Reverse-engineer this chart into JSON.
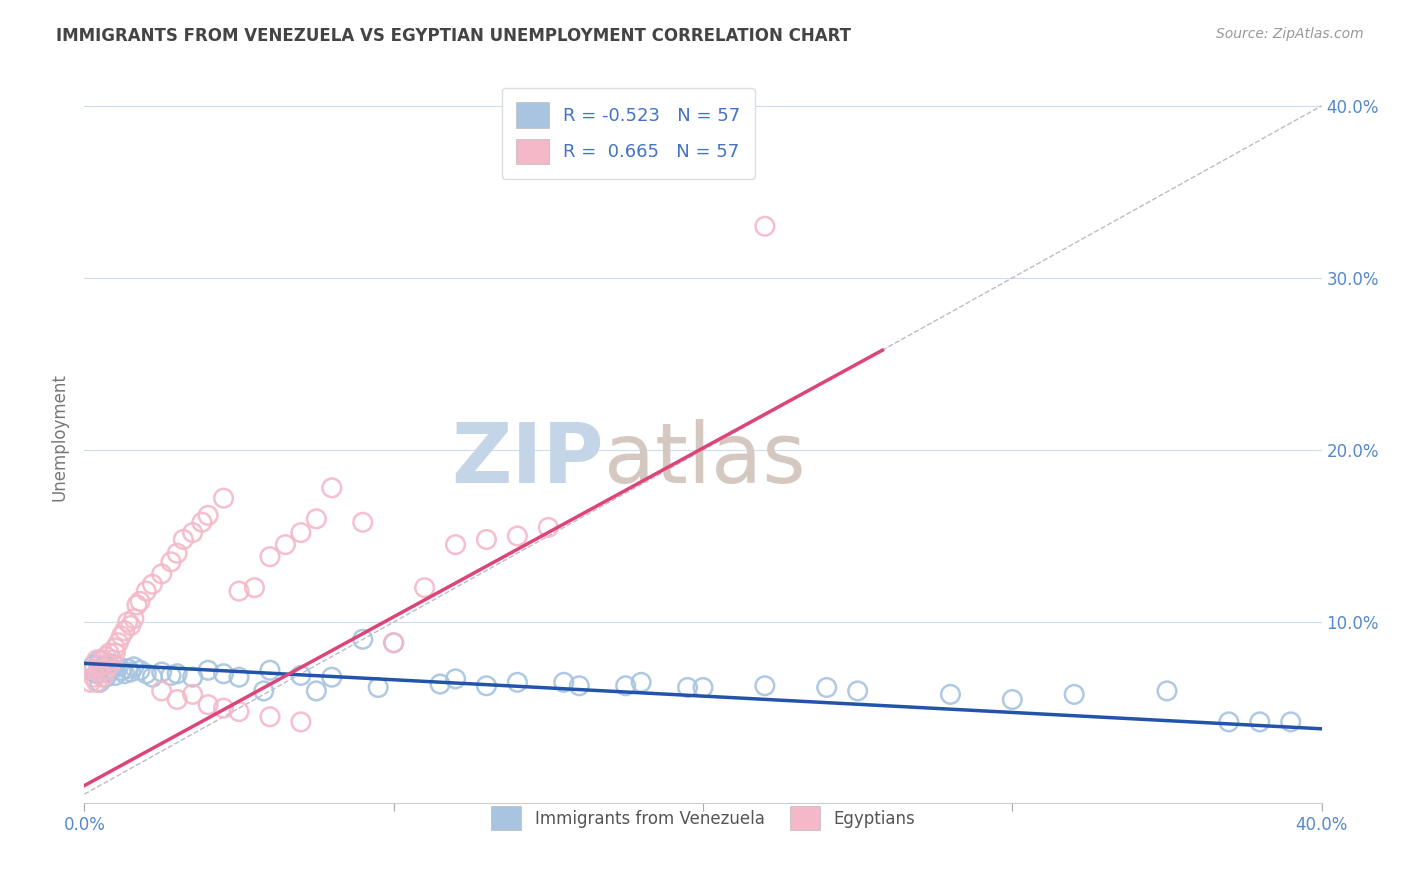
{
  "title": "IMMIGRANTS FROM VENEZUELA VS EGYPTIAN UNEMPLOYMENT CORRELATION CHART",
  "source": "Source: ZipAtlas.com",
  "ylabel": "Unemployment",
  "blue_color": "#a8c4e0",
  "pink_color": "#f4b8c8",
  "blue_line_color": "#2255aa",
  "pink_line_color": "#dd4477",
  "diagonal_color": "#bbbbcc",
  "watermark_zip_color": "#c5d5e8",
  "watermark_atlas_color": "#d5c8c0",
  "title_color": "#444444",
  "tick_color": "#5588cc",
  "xlim": [
    0.0,
    0.4
  ],
  "ylim": [
    -0.005,
    0.42
  ],
  "legend_blue_label": "R = -0.523   N = 57",
  "legend_pink_label": "R =  0.665   N = 57",
  "legend_bottom_blue": "Immigrants from Venezuela",
  "legend_bottom_pink": "Egyptians",
  "blue_scatter_x": [
    0.002,
    0.003,
    0.004,
    0.005,
    0.005,
    0.006,
    0.007,
    0.007,
    0.008,
    0.008,
    0.009,
    0.01,
    0.01,
    0.011,
    0.012,
    0.013,
    0.014,
    0.015,
    0.016,
    0.018,
    0.02,
    0.022,
    0.025,
    0.028,
    0.03,
    0.035,
    0.04,
    0.045,
    0.05,
    0.06,
    0.07,
    0.08,
    0.09,
    0.1,
    0.12,
    0.14,
    0.16,
    0.18,
    0.2,
    0.22,
    0.25,
    0.28,
    0.3,
    0.32,
    0.35,
    0.37,
    0.38,
    0.39,
    0.13,
    0.155,
    0.175,
    0.195,
    0.058,
    0.075,
    0.095,
    0.115,
    0.24
  ],
  "blue_scatter_y": [
    0.072,
    0.075,
    0.07,
    0.078,
    0.065,
    0.074,
    0.072,
    0.068,
    0.076,
    0.071,
    0.073,
    0.075,
    0.069,
    0.074,
    0.072,
    0.07,
    0.073,
    0.071,
    0.074,
    0.072,
    0.07,
    0.068,
    0.071,
    0.069,
    0.07,
    0.068,
    0.072,
    0.07,
    0.068,
    0.072,
    0.069,
    0.068,
    0.09,
    0.088,
    0.067,
    0.065,
    0.063,
    0.065,
    0.062,
    0.063,
    0.06,
    0.058,
    0.055,
    0.058,
    0.06,
    0.042,
    0.042,
    0.042,
    0.063,
    0.065,
    0.063,
    0.062,
    0.06,
    0.06,
    0.062,
    0.064,
    0.062
  ],
  "pink_scatter_x": [
    0.002,
    0.003,
    0.003,
    0.004,
    0.004,
    0.005,
    0.005,
    0.006,
    0.006,
    0.007,
    0.007,
    0.008,
    0.008,
    0.009,
    0.01,
    0.01,
    0.011,
    0.012,
    0.013,
    0.014,
    0.015,
    0.016,
    0.017,
    0.018,
    0.02,
    0.022,
    0.025,
    0.028,
    0.03,
    0.032,
    0.035,
    0.038,
    0.04,
    0.045,
    0.05,
    0.055,
    0.06,
    0.065,
    0.07,
    0.075,
    0.08,
    0.09,
    0.1,
    0.11,
    0.12,
    0.13,
    0.14,
    0.15,
    0.025,
    0.03,
    0.035,
    0.04,
    0.045,
    0.05,
    0.06,
    0.07,
    0.22
  ],
  "pink_scatter_y": [
    0.065,
    0.068,
    0.072,
    0.065,
    0.078,
    0.07,
    0.075,
    0.068,
    0.078,
    0.072,
    0.08,
    0.075,
    0.082,
    0.078,
    0.082,
    0.085,
    0.088,
    0.092,
    0.095,
    0.1,
    0.098,
    0.102,
    0.11,
    0.112,
    0.118,
    0.122,
    0.128,
    0.135,
    0.14,
    0.148,
    0.152,
    0.158,
    0.162,
    0.172,
    0.118,
    0.12,
    0.138,
    0.145,
    0.152,
    0.16,
    0.178,
    0.158,
    0.088,
    0.12,
    0.145,
    0.148,
    0.15,
    0.155,
    0.06,
    0.055,
    0.058,
    0.052,
    0.05,
    0.048,
    0.045,
    0.042,
    0.33
  ],
  "blue_line_x": [
    0.0,
    0.4
  ],
  "blue_line_y": [
    0.076,
    0.038
  ],
  "pink_line_x": [
    0.0,
    0.258
  ],
  "pink_line_y": [
    0.005,
    0.258
  ],
  "diag_line_x": [
    0.0,
    0.4
  ],
  "diag_line_y": [
    0.0,
    0.4
  ],
  "xtick_positions": [
    0.0,
    0.1,
    0.2,
    0.3,
    0.4
  ],
  "ytick_positions": [
    0.0,
    0.1,
    0.2,
    0.3,
    0.4
  ],
  "ytick_labels": [
    "",
    "10.0%",
    "20.0%",
    "30.0%",
    "40.0%"
  ]
}
